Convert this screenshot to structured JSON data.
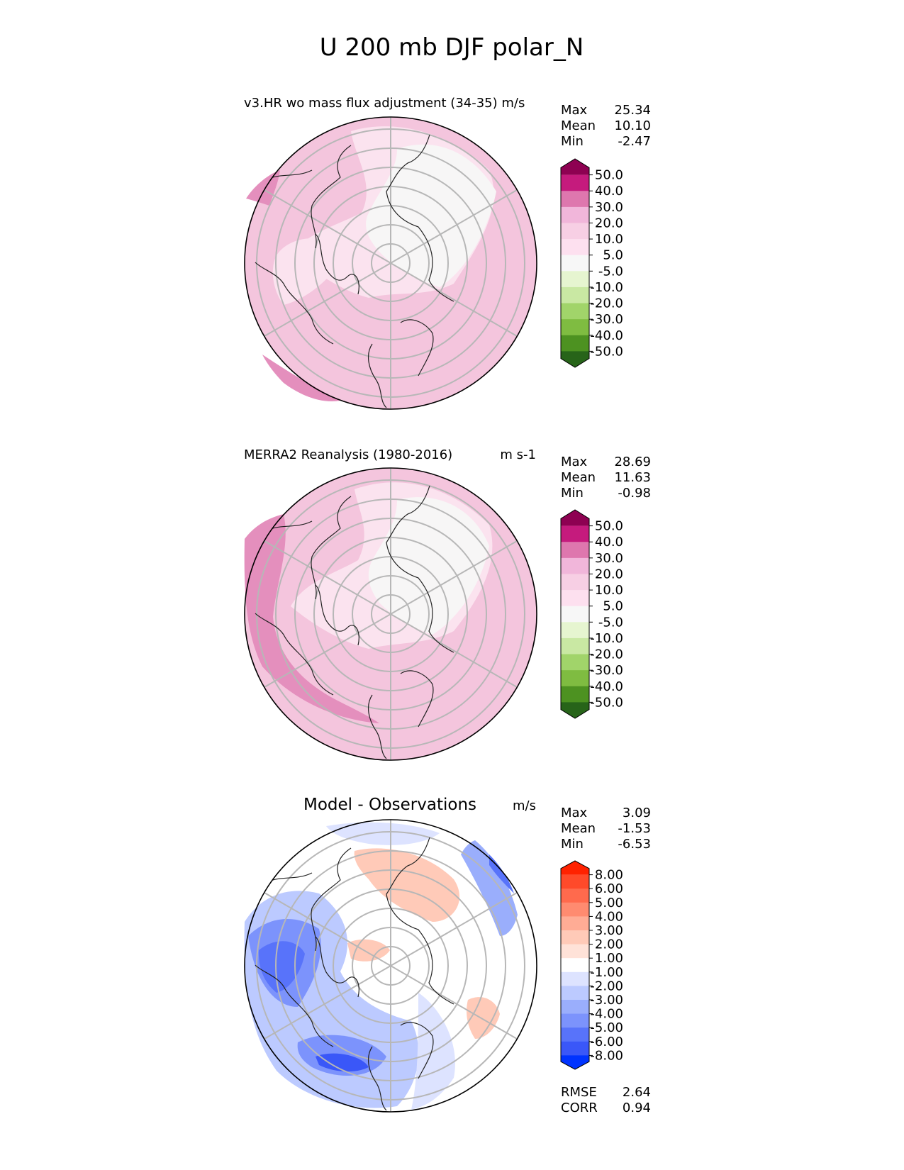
{
  "figure_title": "U 200 mb DJF polar_N",
  "stat_labels": {
    "max": "Max",
    "mean": "Mean",
    "min": "Min",
    "rmse": "RMSE",
    "corr": "CORR"
  },
  "panels": [
    {
      "title": "v3.HR wo mass flux adjustment (34-35) m/s",
      "units": "",
      "stats": {
        "max": "25.34",
        "mean": "10.10",
        "min": "-2.47"
      }
    },
    {
      "title": "MERRA2 Reanalysis (1980-2016)",
      "units": "m s-1",
      "stats": {
        "max": "28.69",
        "mean": "11.63",
        "min": "-0.98"
      }
    },
    {
      "title": "Model - Observations",
      "units": "m/s",
      "stats": {
        "max": "3.09",
        "mean": "-1.53",
        "min": "-6.53"
      },
      "metrics": {
        "rmse": "2.64",
        "corr": "0.94"
      }
    }
  ],
  "chart_data": [
    {
      "type": "polar-contour",
      "title": "v3.HR wo mass flux adjustment (34-35) m/s",
      "projection": "north polar stereographic",
      "units": "m/s",
      "colorbar_levels": [
        "50.0",
        "40.0",
        "30.0",
        "20.0",
        "10.0",
        "5.0",
        "-5.0",
        "-10.0",
        "-20.0",
        "-30.0",
        "-40.0",
        "-50.0"
      ],
      "colorbar_colors": [
        "#8e0152",
        "#c51b7d",
        "#de77ae",
        "#f1b6da",
        "#f7cfe4",
        "#fde0ef",
        "#f7f7f7",
        "#e6f5d0",
        "#c9e8a3",
        "#a1d46a",
        "#7fbc41",
        "#4d9221",
        "#276419"
      ],
      "max": 25.34,
      "mean": 10.1,
      "min": -2.47
    },
    {
      "type": "polar-contour",
      "title": "MERRA2 Reanalysis (1980-2016)",
      "projection": "north polar stereographic",
      "units": "m s-1",
      "colorbar_levels": [
        "50.0",
        "40.0",
        "30.0",
        "20.0",
        "10.0",
        "5.0",
        "-5.0",
        "-10.0",
        "-20.0",
        "-30.0",
        "-40.0",
        "-50.0"
      ],
      "colorbar_colors": [
        "#8e0152",
        "#c51b7d",
        "#de77ae",
        "#f1b6da",
        "#f7cfe4",
        "#fde0ef",
        "#f7f7f7",
        "#e6f5d0",
        "#c9e8a3",
        "#a1d46a",
        "#7fbc41",
        "#4d9221",
        "#276419"
      ],
      "max": 28.69,
      "mean": 11.63,
      "min": -0.98
    },
    {
      "type": "polar-contour",
      "title": "Model - Observations",
      "projection": "north polar stereographic",
      "units": "m/s",
      "colorbar_levels": [
        "8.00",
        "6.00",
        "5.00",
        "4.00",
        "3.00",
        "2.00",
        "1.00",
        "-1.00",
        "-2.00",
        "-3.00",
        "-4.00",
        "-5.00",
        "-6.00",
        "-8.00"
      ],
      "colorbar_colors": [
        "#ff2200",
        "#ff4a2a",
        "#ff6a4d",
        "#ff8b70",
        "#ffac95",
        "#ffcab8",
        "#ffe2d8",
        "#ffffff",
        "#dde3ff",
        "#bccaff",
        "#9aaefc",
        "#7c93fc",
        "#5873fa",
        "#3a57f8",
        "#0033ff"
      ],
      "max": 3.09,
      "mean": -1.53,
      "min": -6.53,
      "rmse": 2.64,
      "corr": 0.94
    }
  ]
}
